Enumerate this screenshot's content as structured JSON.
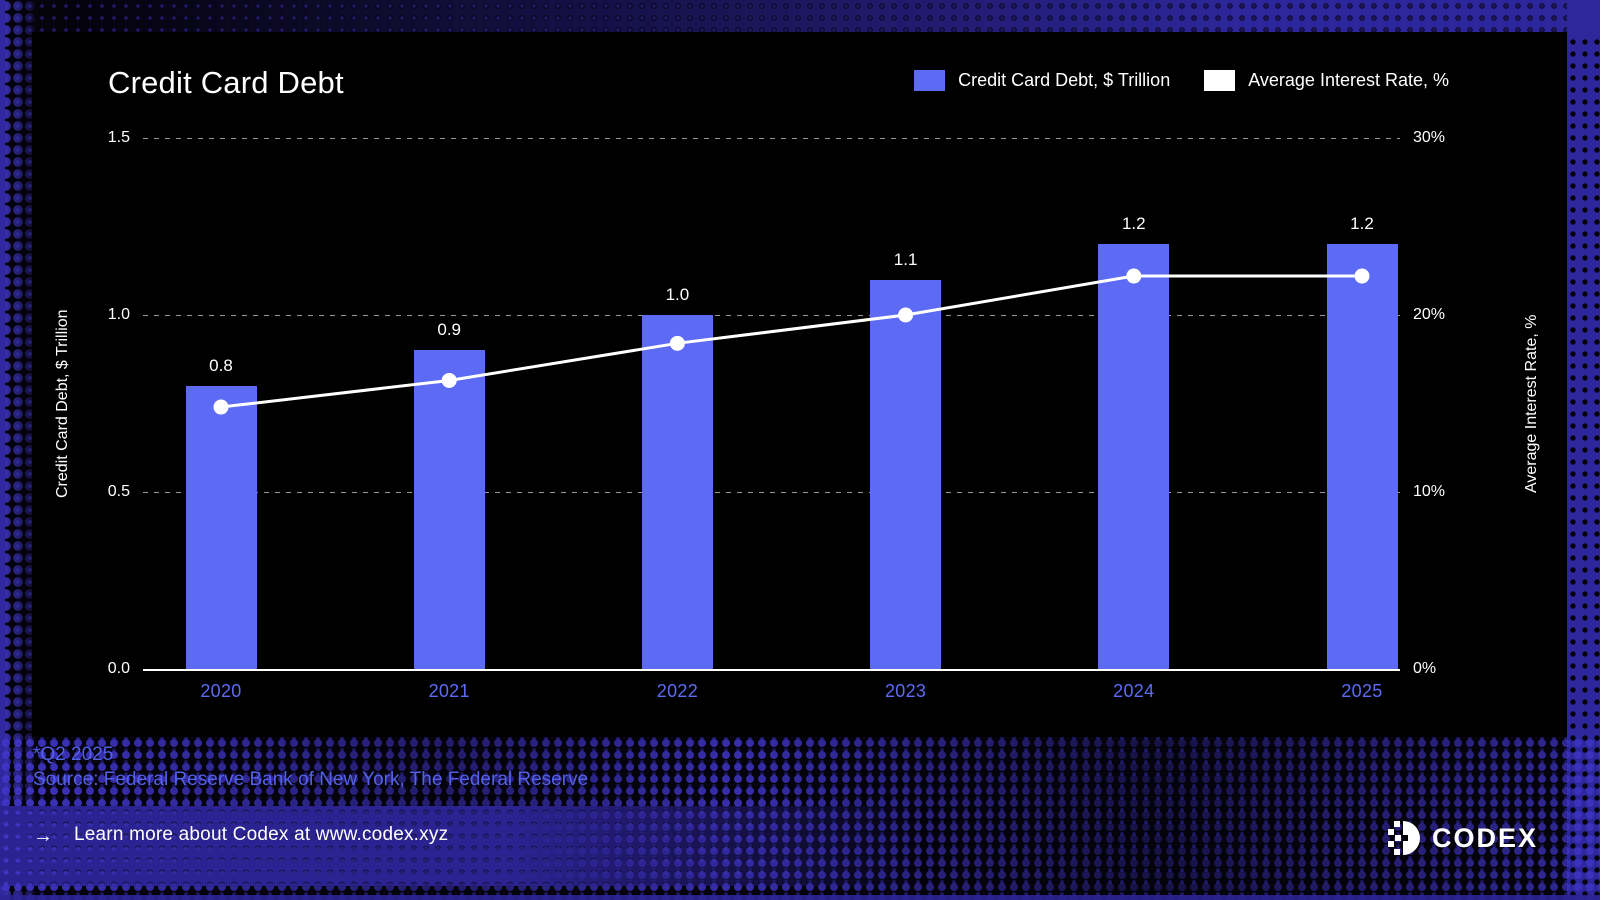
{
  "title": "Credit Card Debt",
  "legend": [
    {
      "label": "Credit Card Debt, $ Trillion",
      "color": "#5c6af4"
    },
    {
      "label": "Average Interest Rate, %",
      "color": "#ffffff"
    }
  ],
  "chart_data": {
    "type": "bar",
    "categories": [
      "2020",
      "2021",
      "2022",
      "2023",
      "2024",
      "2025"
    ],
    "series": [
      {
        "name": "Credit Card Debt, $ Trillion",
        "type": "bar",
        "axis": "left",
        "color": "#5c6af4",
        "values": [
          0.8,
          0.9,
          1.0,
          1.1,
          1.2,
          1.2
        ],
        "labels": [
          "0.8",
          "0.9",
          "1.0",
          "1.1",
          "1.2",
          "1.2"
        ]
      },
      {
        "name": "Average Interest Rate, %",
        "type": "line",
        "axis": "right",
        "color": "#ffffff",
        "values": [
          14.8,
          16.3,
          18.4,
          20.0,
          22.2,
          22.2
        ]
      }
    ],
    "left_axis": {
      "label": "Credit Card Debt, $ Trillion",
      "min": 0,
      "max": 1.5,
      "ticks_top_down": [
        "1.5",
        "1.0",
        "0.5",
        "0.0"
      ]
    },
    "right_axis": {
      "label": "Average Interest Rate, %",
      "min": 0,
      "max": 30,
      "ticks_top_down": [
        "30%",
        "20%",
        "10%",
        "0%"
      ]
    },
    "grid": "dashed-horizontal",
    "legend_position": "top-right"
  },
  "footer": {
    "note": "*Q2 2025",
    "source": "Source: Federal Reserve Bank of New York, The Federal Reserve"
  },
  "bottom_bar": {
    "arrow": "→",
    "text": "Learn more about Codex at www.codex.xyz",
    "brand": "CODEX"
  },
  "colors": {
    "accent": "#5c6af4",
    "year_label": "#5d6bf5",
    "footer_text": "#5361e8",
    "halftone": "#2e279c",
    "background": "#000000",
    "line": "#ffffff"
  }
}
